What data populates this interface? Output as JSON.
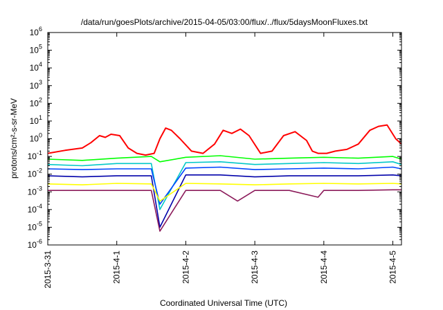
{
  "chart_data": {
    "type": "line",
    "title": "/data/run/goesPlots/archive/2015-04-05/03:00/flux/../flux/5daysMoonFluxes.txt",
    "xlabel": "Coordinated Universal Time (UTC)",
    "ylabel": "protons/cm²-s-sr-MeV",
    "yscale": "log",
    "ylim": [
      1e-06,
      1000000.0
    ],
    "xlim": [
      "2015-03-31T00:00",
      "2015-04-05T03:00"
    ],
    "x_ticks": [
      "2015-3-31",
      "2015-4-1",
      "2015-4-2",
      "2015-4-3",
      "2015-4-4",
      "2015-4-5"
    ],
    "y_ticks": [
      {
        "base": "10",
        "exp": "-6"
      },
      {
        "base": "10",
        "exp": "-5"
      },
      {
        "base": "10",
        "exp": "-4"
      },
      {
        "base": "10",
        "exp": "-3"
      },
      {
        "base": "10",
        "exp": "-2"
      },
      {
        "base": "10",
        "exp": "-1"
      },
      {
        "base": "10",
        "exp": "0"
      },
      {
        "base": "10",
        "exp": "1"
      },
      {
        "base": "10",
        "exp": "2"
      },
      {
        "base": "10",
        "exp": "3"
      },
      {
        "base": "10",
        "exp": "4"
      },
      {
        "base": "10",
        "exp": "5"
      },
      {
        "base": "10",
        "exp": "6"
      }
    ],
    "grid": false,
    "series": [
      {
        "color": "#ff0000",
        "x": [
          "2015-03-31T00:00",
          "2015-03-31T06:00",
          "2015-03-31T12:00",
          "2015-03-31T15:00",
          "2015-03-31T18:00",
          "2015-03-31T20:00",
          "2015-03-31T22:00",
          "2015-04-01T01:00",
          "2015-04-01T04:00",
          "2015-04-01T07:00",
          "2015-04-01T10:00",
          "2015-04-01T13:00",
          "2015-04-01T15:00",
          "2015-04-01T17:00",
          "2015-04-01T19:00",
          "2015-04-01T22:00",
          "2015-04-02T02:00",
          "2015-04-02T06:00",
          "2015-04-02T10:00",
          "2015-04-02T13:00",
          "2015-04-02T16:00",
          "2015-04-02T19:00",
          "2015-04-02T22:00",
          "2015-04-03T02:00",
          "2015-04-03T06:00",
          "2015-04-03T10:00",
          "2015-04-03T14:00",
          "2015-04-03T18:00",
          "2015-04-03T20:00",
          "2015-04-03T22:00",
          "2015-04-04T01:00",
          "2015-04-04T04:00",
          "2015-04-04T08:00",
          "2015-04-04T12:00",
          "2015-04-04T16:00",
          "2015-04-04T19:00",
          "2015-04-04T22:00",
          "2015-04-05T01:00",
          "2015-04-05T03:00"
        ],
        "y": [
          0.15,
          0.22,
          0.3,
          0.6,
          1.5,
          1.2,
          1.8,
          1.5,
          0.3,
          0.15,
          0.12,
          0.15,
          1.0,
          4.0,
          3.0,
          1.0,
          0.2,
          0.15,
          0.5,
          3.0,
          2.0,
          3.5,
          1.5,
          0.15,
          0.2,
          1.5,
          2.5,
          0.8,
          0.2,
          0.15,
          0.15,
          0.2,
          0.25,
          0.5,
          3.0,
          5.0,
          6.0,
          1.0,
          0.5
        ]
      },
      {
        "color": "#00ff00",
        "x": [
          "2015-03-31T00:00",
          "2015-03-31T12:00",
          "2015-04-01T00:00",
          "2015-04-01T12:00",
          "2015-04-01T15:00",
          "2015-04-02T00:00",
          "2015-04-02T12:00",
          "2015-04-03T00:00",
          "2015-04-03T12:00",
          "2015-04-04T00:00",
          "2015-04-04T12:00",
          "2015-04-05T00:00",
          "2015-04-05T03:00"
        ],
        "y": [
          0.07,
          0.06,
          0.08,
          0.1,
          0.05,
          0.09,
          0.11,
          0.07,
          0.08,
          0.09,
          0.08,
          0.1,
          0.07
        ]
      },
      {
        "color": "#00c8c8",
        "x": [
          "2015-03-31T00:00",
          "2015-03-31T12:00",
          "2015-04-01T00:00",
          "2015-04-01T12:00",
          "2015-04-01T15:00",
          "2015-04-02T00:00",
          "2015-04-02T12:00",
          "2015-04-03T00:00",
          "2015-04-03T12:00",
          "2015-04-04T00:00",
          "2015-04-04T12:00",
          "2015-04-05T00:00",
          "2015-04-05T03:00"
        ],
        "y": [
          0.035,
          0.03,
          0.04,
          0.04,
          0.0001,
          0.045,
          0.05,
          0.035,
          0.04,
          0.045,
          0.04,
          0.05,
          0.035
        ]
      },
      {
        "color": "#0044ff",
        "x": [
          "2015-03-31T00:00",
          "2015-03-31T12:00",
          "2015-04-01T00:00",
          "2015-04-01T12:00",
          "2015-04-01T15:00",
          "2015-04-02T00:00",
          "2015-04-02T12:00",
          "2015-04-03T00:00",
          "2015-04-03T12:00",
          "2015-04-04T00:00",
          "2015-04-04T12:00",
          "2015-04-05T00:00",
          "2015-04-05T03:00"
        ],
        "y": [
          0.02,
          0.018,
          0.02,
          0.02,
          0.0002,
          0.022,
          0.025,
          0.018,
          0.02,
          0.022,
          0.02,
          0.025,
          0.02
        ]
      },
      {
        "color": "#0000aa",
        "x": [
          "2015-03-31T00:00",
          "2015-03-31T12:00",
          "2015-04-01T00:00",
          "2015-04-01T12:00",
          "2015-04-01T15:00",
          "2015-04-02T00:00",
          "2015-04-02T12:00",
          "2015-04-03T00:00",
          "2015-04-03T12:00",
          "2015-04-04T00:00",
          "2015-04-04T12:00",
          "2015-04-05T00:00",
          "2015-04-05T03:00"
        ],
        "y": [
          0.008,
          0.007,
          0.008,
          0.008,
          1e-05,
          0.009,
          0.009,
          0.007,
          0.008,
          0.008,
          0.008,
          0.009,
          0.008
        ]
      },
      {
        "color": "#ffff00",
        "x": [
          "2015-03-31T00:00",
          "2015-03-31T12:00",
          "2015-04-01T00:00",
          "2015-04-01T12:00",
          "2015-04-01T15:00",
          "2015-04-02T00:00",
          "2015-04-02T12:00",
          "2015-04-03T00:00",
          "2015-04-03T12:00",
          "2015-04-04T00:00",
          "2015-04-04T12:00",
          "2015-04-05T00:00",
          "2015-04-05T03:00"
        ],
        "y": [
          0.0028,
          0.0025,
          0.003,
          0.0028,
          0.0003,
          0.003,
          0.0028,
          0.0025,
          0.0028,
          0.003,
          0.0028,
          0.003,
          0.0028
        ]
      },
      {
        "color": "#8b1a5a",
        "x": [
          "2015-03-31T00:00",
          "2015-03-31T12:00",
          "2015-04-01T00:00",
          "2015-04-01T12:00",
          "2015-04-01T15:00",
          "2015-04-02T00:00",
          "2015-04-02T12:00",
          "2015-04-02T18:00",
          "2015-04-03T00:00",
          "2015-04-03T12:00",
          "2015-04-03T22:00",
          "2015-04-04T00:00",
          "2015-04-04T12:00",
          "2015-04-05T00:00",
          "2015-04-05T03:00"
        ],
        "y": [
          0.0012,
          0.0012,
          0.0012,
          0.0012,
          6e-06,
          0.0012,
          0.0012,
          0.0003,
          0.0012,
          0.0012,
          0.0005,
          0.0012,
          0.0012,
          0.0013,
          0.0013
        ]
      }
    ]
  }
}
